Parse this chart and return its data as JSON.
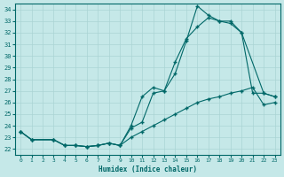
{
  "xlabel": "Humidex (Indice chaleur)",
  "xlim": [
    -0.5,
    23.5
  ],
  "ylim": [
    21.5,
    34.5
  ],
  "yticks": [
    22,
    23,
    24,
    25,
    26,
    27,
    28,
    29,
    30,
    31,
    32,
    33,
    34
  ],
  "xticks": [
    0,
    1,
    2,
    3,
    4,
    5,
    6,
    7,
    8,
    9,
    10,
    11,
    12,
    13,
    14,
    15,
    16,
    17,
    18,
    19,
    20,
    21,
    22,
    23
  ],
  "bg_color": "#c5e8e8",
  "grid_color": "#aad4d4",
  "line_color": "#006868",
  "line1_x": [
    0,
    1,
    3,
    4,
    5,
    6,
    7,
    8,
    9,
    10,
    11,
    12,
    13,
    14,
    15,
    16,
    17,
    18,
    19,
    20,
    22,
    23
  ],
  "line1_y": [
    23.5,
    22.8,
    22.8,
    22.3,
    22.3,
    22.2,
    22.3,
    22.5,
    22.3,
    23.8,
    24.3,
    26.8,
    27.0,
    28.5,
    31.3,
    34.3,
    33.5,
    33.0,
    32.8,
    32.0,
    26.8,
    26.5
  ],
  "line2_x": [
    0,
    1,
    3,
    4,
    5,
    6,
    7,
    8,
    9,
    10,
    11,
    12,
    13,
    14,
    15,
    16,
    17,
    18,
    19,
    20,
    21,
    22,
    23
  ],
  "line2_y": [
    23.5,
    22.8,
    22.8,
    22.3,
    22.3,
    22.2,
    22.3,
    22.5,
    22.3,
    24.0,
    26.5,
    27.3,
    27.0,
    29.5,
    31.5,
    32.5,
    33.3,
    33.0,
    33.0,
    32.0,
    26.8,
    26.8,
    26.5
  ],
  "line3_x": [
    0,
    1,
    3,
    4,
    5,
    6,
    7,
    8,
    9,
    10,
    11,
    12,
    13,
    14,
    15,
    16,
    17,
    18,
    19,
    20,
    21,
    22,
    23
  ],
  "line3_y": [
    23.5,
    22.8,
    22.8,
    22.3,
    22.3,
    22.2,
    22.3,
    22.5,
    22.3,
    23.0,
    23.5,
    24.0,
    24.5,
    25.0,
    25.5,
    26.0,
    26.3,
    26.5,
    26.8,
    27.0,
    27.3,
    25.8,
    26.0
  ]
}
